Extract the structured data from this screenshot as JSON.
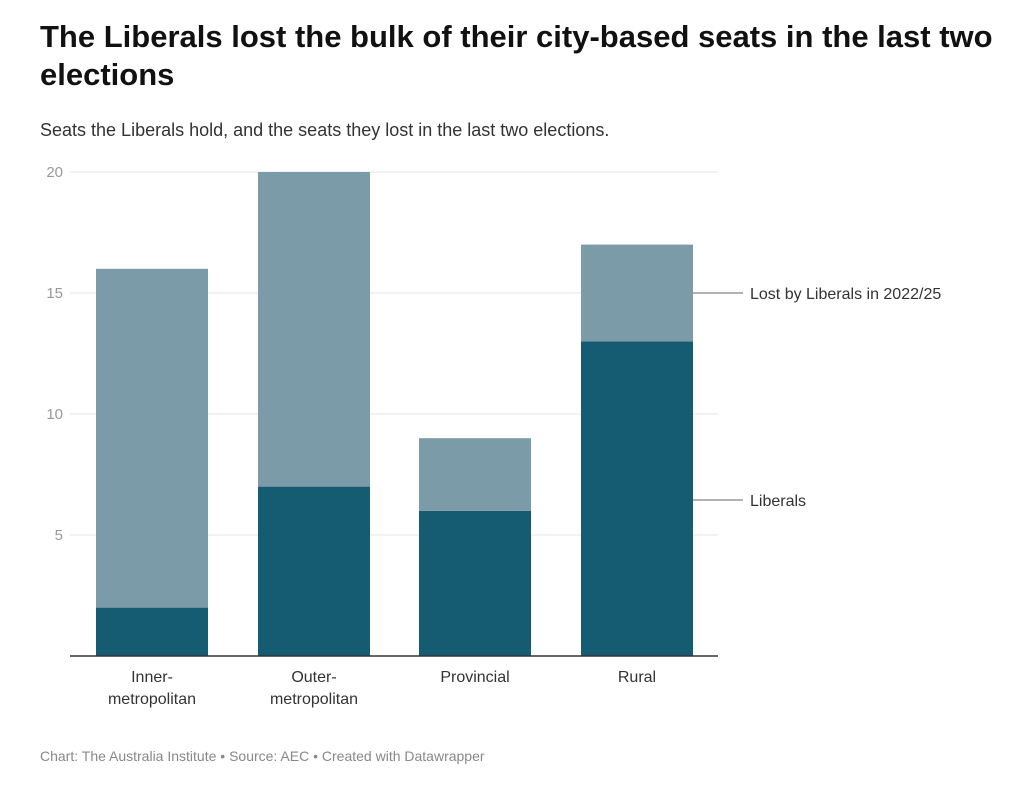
{
  "title": "The Liberals lost the bulk of their city-based seats in the last two elections",
  "subtitle": "Seats the Liberals hold, and the seats they lost in the last two elections.",
  "footer": "Chart: The Australia Institute • Source: AEC • Created with Datawrapper",
  "chart_data": {
    "type": "bar",
    "stacked": true,
    "categories": [
      [
        "Inner-",
        "metropolitan"
      ],
      [
        "Outer-",
        "metropolitan"
      ],
      [
        "Provincial"
      ],
      [
        "Rural"
      ]
    ],
    "series": [
      {
        "name": "Liberals",
        "values": [
          2,
          7,
          6,
          13
        ],
        "color": "#155b72"
      },
      {
        "name": "Lost by Liberals in 2022/25",
        "values": [
          14,
          13,
          3,
          4
        ],
        "color": "#7a9ba7"
      }
    ],
    "yticks": [
      "5",
      "10",
      "15",
      "20"
    ],
    "ylim": [
      0,
      20
    ],
    "grid": true,
    "legend": "right, direct labels"
  }
}
